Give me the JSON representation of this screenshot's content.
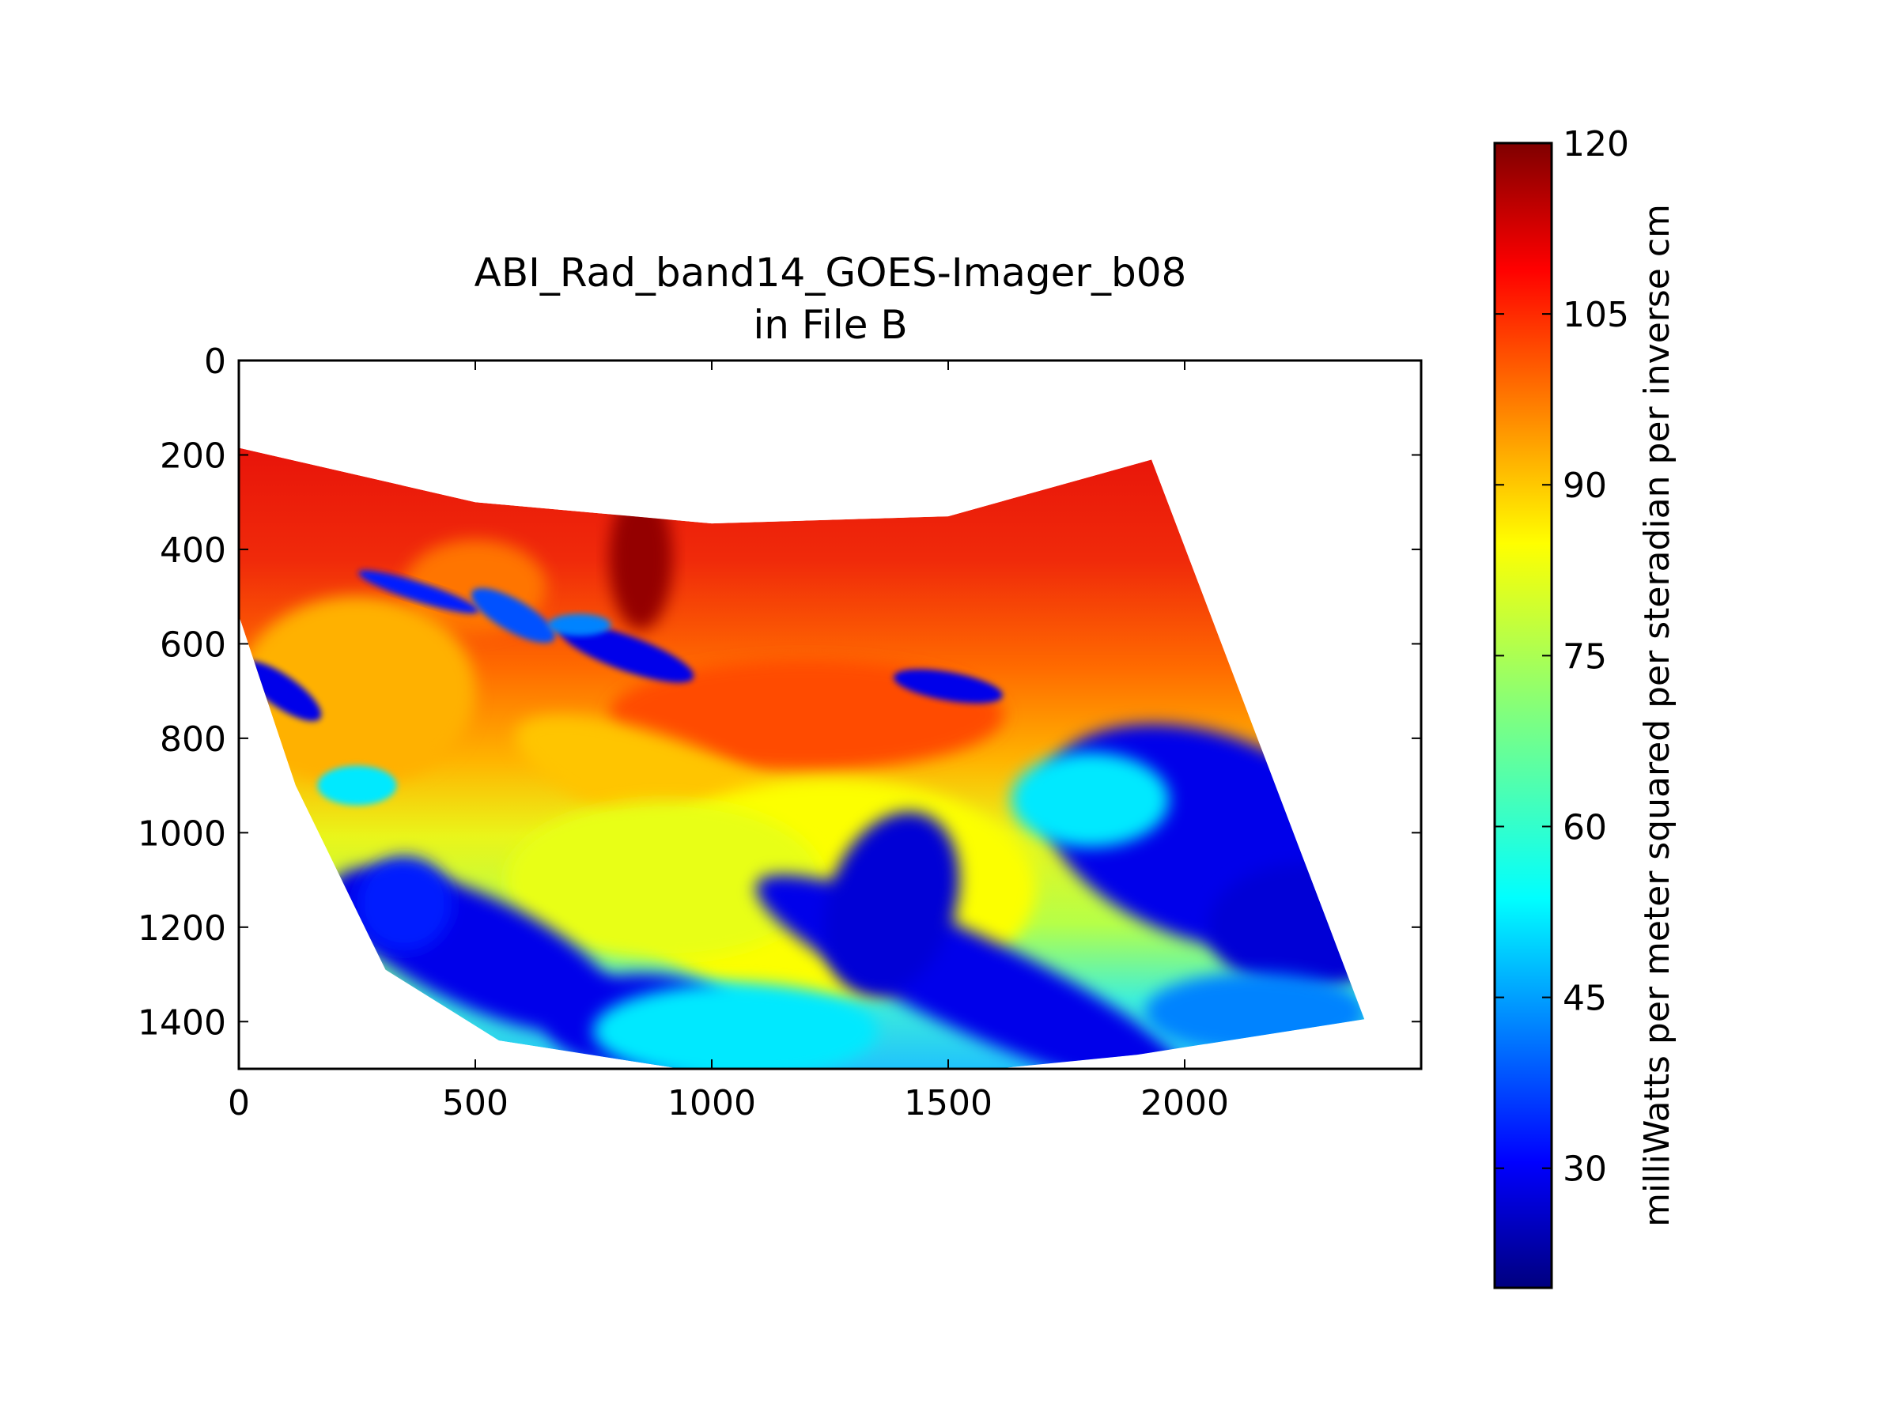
{
  "chart_data": {
    "type": "heatmap",
    "title": "ABI_Rad_band14_GOES-Imager_b08\nin File B",
    "title_lines": [
      "ABI_Rad_band14_GOES-Imager_b08",
      "in File B"
    ],
    "xlabel": "",
    "ylabel": "",
    "x_ticks": [
      0,
      500,
      1000,
      1500,
      2000
    ],
    "y_ticks": [
      0,
      200,
      400,
      600,
      800,
      1000,
      1200,
      1400
    ],
    "xlim": [
      0,
      2500
    ],
    "ylim": [
      1500,
      0
    ],
    "y_inverted": true,
    "grid": false,
    "colormap": "jet",
    "colorbar": {
      "label": "milliWatts per meter squared per steradian per inverse cm",
      "range": [
        19.5,
        120
      ],
      "ticks": [
        30,
        45,
        60,
        75,
        90,
        105,
        120
      ],
      "location": "right"
    },
    "data_region": {
      "description_note": "Curved swath of satellite radiance; values approximate",
      "top_edge": [
        [
          0,
          185
        ],
        [
          500,
          300
        ],
        [
          1000,
          345
        ],
        [
          1500,
          330
        ],
        [
          1930,
          210
        ]
      ],
      "right_edge": [
        [
          1930,
          210
        ],
        [
          2380,
          1395
        ]
      ],
      "bottom_edge": [
        [
          2380,
          1395
        ],
        [
          1900,
          1470
        ],
        [
          1500,
          1510
        ],
        [
          1000,
          1510
        ],
        [
          550,
          1440
        ],
        [
          310,
          1290
        ]
      ],
      "left_edge": [
        [
          310,
          1290
        ],
        [
          120,
          900
        ],
        [
          0,
          540
        ]
      ]
    },
    "features": [
      {
        "region": "northern swath",
        "value": 110
      },
      {
        "region": "central upper",
        "value": 100
      },
      {
        "region": "central",
        "value": 85
      },
      {
        "region": "south-central",
        "value": 65
      },
      {
        "region": "southern swath",
        "value": 50
      },
      {
        "region": "east cloud band",
        "value": 30
      },
      {
        "region": "southwest clouds",
        "value": 30
      },
      {
        "region": "northern cloud streaks",
        "value": 35
      }
    ]
  }
}
